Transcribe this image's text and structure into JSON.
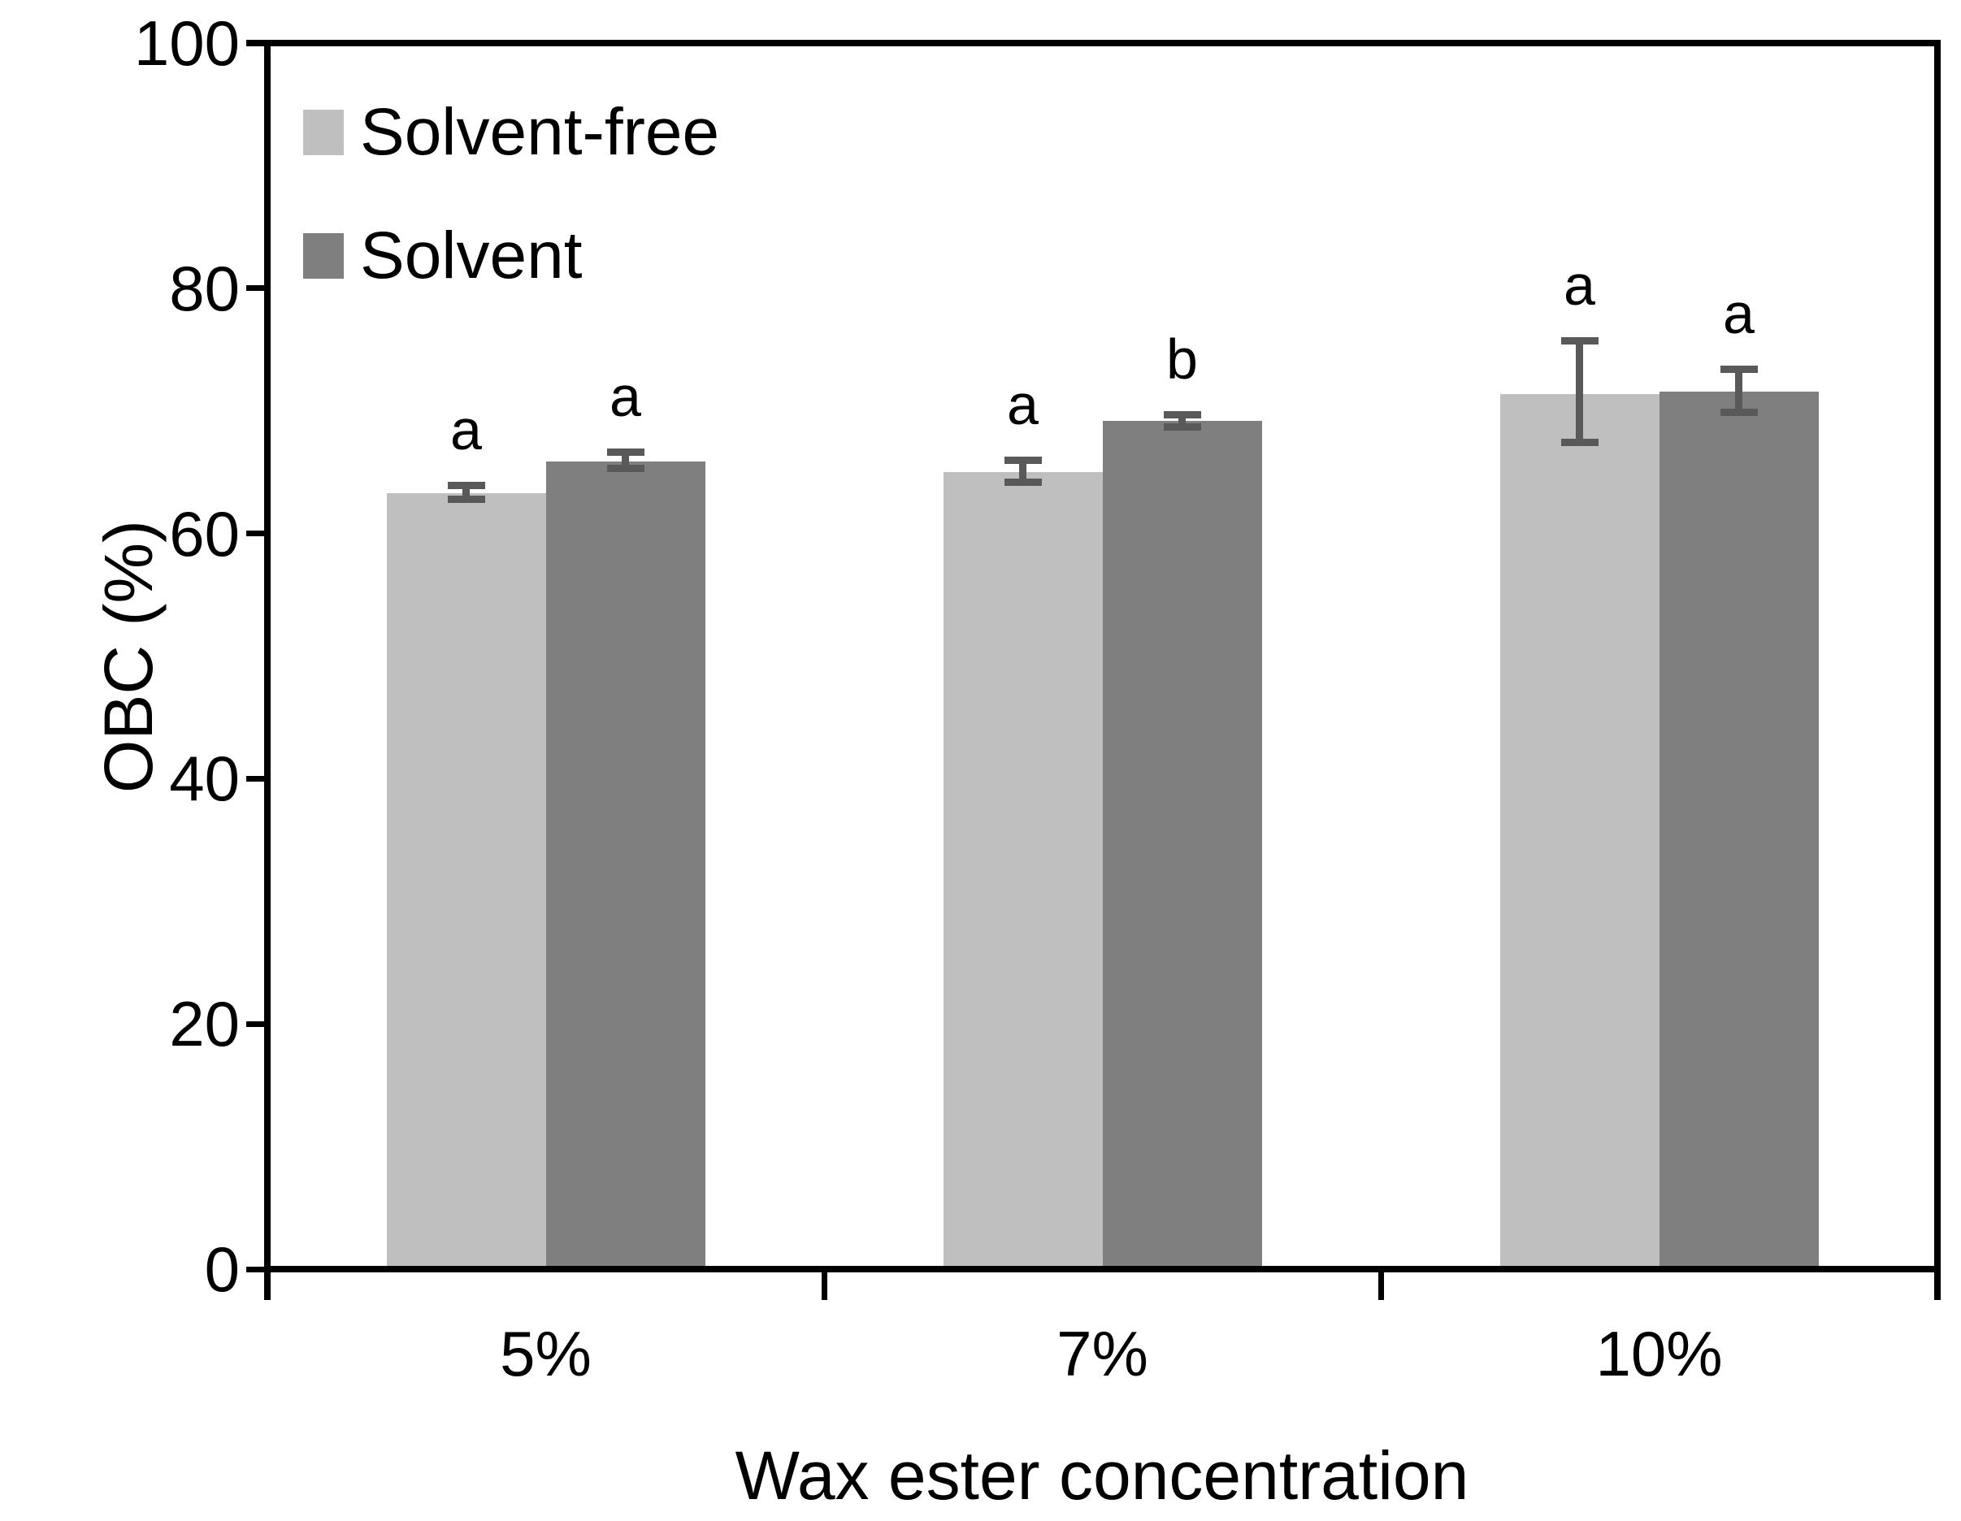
{
  "chart_data": {
    "type": "bar",
    "title": "",
    "xlabel": "Wax ester concentration",
    "ylabel": "OBC (%)",
    "ylim": [
      0,
      100
    ],
    "yticks": [
      0,
      20,
      40,
      60,
      80,
      100
    ],
    "categories": [
      "5%",
      "7%",
      "10%"
    ],
    "grid": false,
    "legend_position": "inside-top-left",
    "background_color": "#ffffff",
    "axis_color": "#000000",
    "error_bar_color": "#595959",
    "series": [
      {
        "name": "Solvent-free",
        "color": "#bfbfbf",
        "values": [
          63.3,
          65.0,
          71.4
        ],
        "error_plus": [
          0.9,
          1.3,
          4.6
        ],
        "error_minus": [
          0.8,
          1.1,
          4.3
        ],
        "sig_letters": [
          "a",
          "a",
          "a"
        ]
      },
      {
        "name": "Solvent",
        "color": "#7f7f7f",
        "values": [
          65.9,
          69.2,
          71.6
        ],
        "error_plus": [
          1.0,
          0.8,
          2.1
        ],
        "error_minus": [
          0.9,
          0.8,
          2.0
        ],
        "sig_letters": [
          "a",
          "b",
          "a"
        ]
      }
    ]
  }
}
